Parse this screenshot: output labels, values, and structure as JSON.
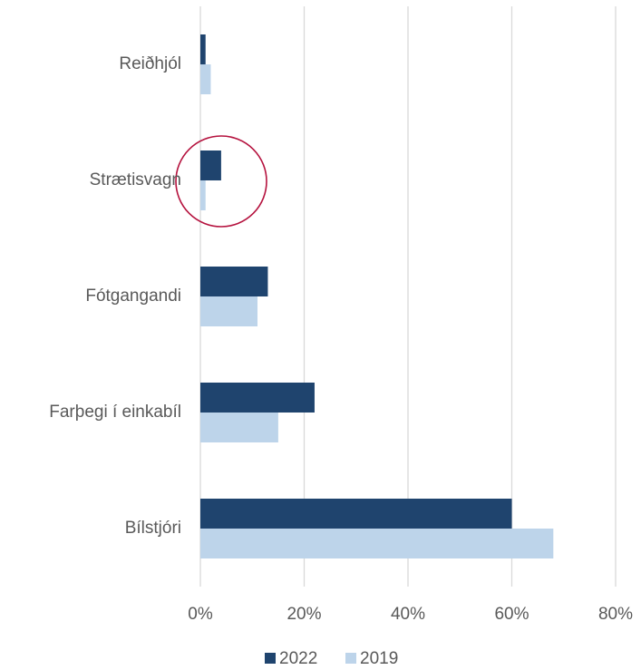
{
  "chart_data": {
    "type": "bar",
    "orientation": "horizontal",
    "categories": [
      "Reiðhjól",
      "Strætisvagn",
      "Fótgangandi",
      "Farþegi í einkabíl",
      "Bílstjóri"
    ],
    "series": [
      {
        "name": "2022",
        "color": "#1f446e",
        "values": [
          1,
          4,
          13,
          22,
          60
        ]
      },
      {
        "name": "2019",
        "color": "#bdd4ea",
        "values": [
          2,
          1,
          11,
          15,
          68
        ]
      }
    ],
    "xlim": [
      0,
      80
    ],
    "xticks": [
      {
        "value": 0,
        "label": "0%"
      },
      {
        "value": 20,
        "label": "20%"
      },
      {
        "value": 40,
        "label": "40%"
      },
      {
        "value": 60,
        "label": "60%"
      },
      {
        "value": 80,
        "label": "80%"
      }
    ],
    "grid": true,
    "legend": "bottom"
  }
}
